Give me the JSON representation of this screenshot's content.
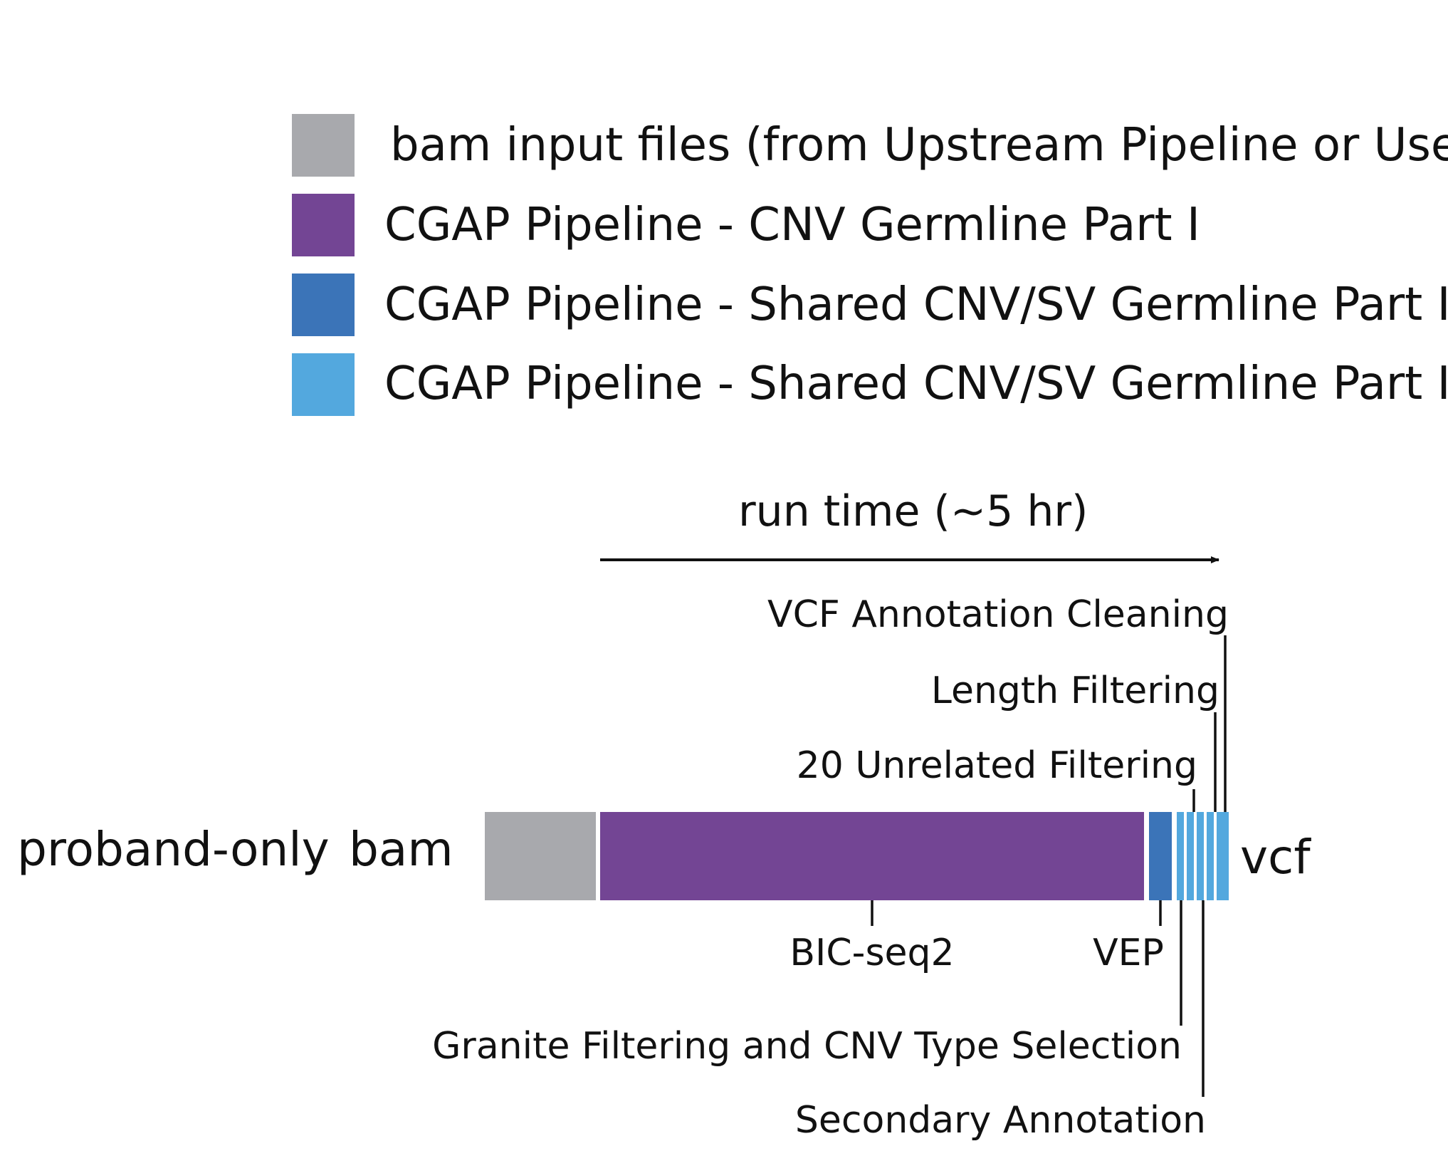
{
  "legend": [
    {
      "label": "bam input files (from Upstream Pipeline or User)",
      "color": "#a8a9ad"
    },
    {
      "label": "CGAP Pipeline - CNV Germline Part I",
      "color": "#734594"
    },
    {
      "label": "CGAP Pipeline - Shared CNV/SV Germline Part II",
      "color": "#3b74b8"
    },
    {
      "label": "CGAP Pipeline - Shared CNV/SV Germline Part III",
      "color": "#53a8de"
    }
  ],
  "timeline": {
    "axis_label": "run time (~5 hr)",
    "row_label": "proband-only",
    "input_label": "bam",
    "output_label": "vcf"
  },
  "steps": {
    "bicseq2": "BIC-seq2",
    "vep": "VEP",
    "granite": "Granite Filtering and CNV Type Selection",
    "secondary": "Secondary Annotation",
    "unrelated": "20 Unrelated Filtering",
    "length": "Length Filtering",
    "vcf_cleaning": "VCF Annotation Cleaning"
  }
}
